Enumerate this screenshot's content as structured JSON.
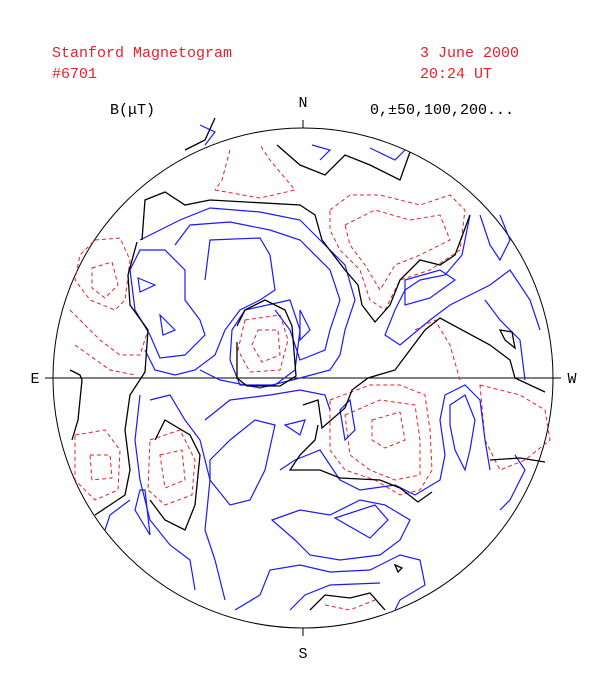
{
  "header": {
    "title": "Stanford Magnetogram",
    "number": "#6701",
    "date": "3 June 2000",
    "time": "20:24 UT"
  },
  "legend": {
    "unit": "B(μT)",
    "levels": "0,±50,100,200..."
  },
  "compass": {
    "north": "N",
    "south": "S",
    "east": "E",
    "west": "W"
  }
}
